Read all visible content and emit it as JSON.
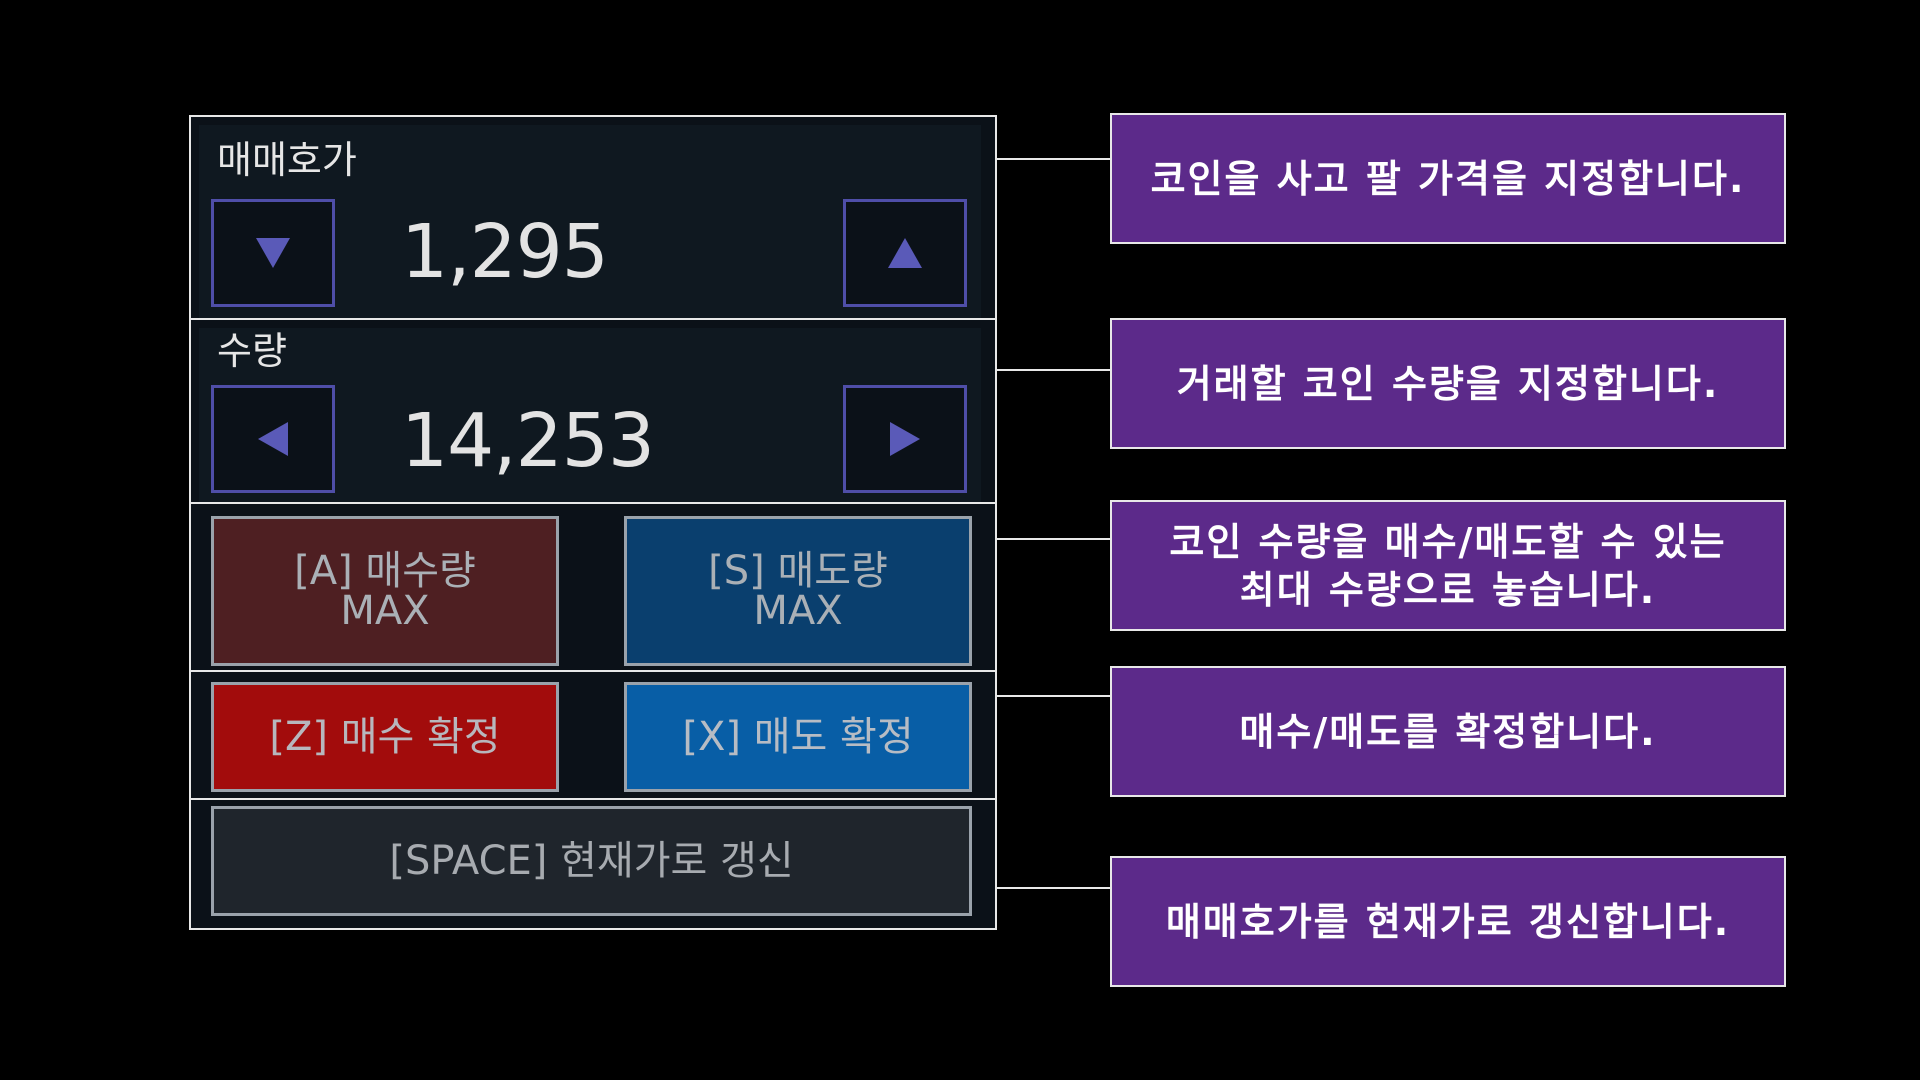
{
  "price": {
    "label": "매매호가",
    "value": "1,295"
  },
  "quantity": {
    "label": "수량",
    "value": "14,253"
  },
  "max_buttons": {
    "buy": {
      "line1": "[A] 매수량",
      "line2": "MAX"
    },
    "sell": {
      "line1": "[S] 매도량",
      "line2": "MAX"
    }
  },
  "confirm_buttons": {
    "buy": "[Z] 매수 확정",
    "sell": "[X] 매도 확정"
  },
  "refresh_button": "[SPACE] 현재가로 갱신",
  "callouts": [
    {
      "text": "코인을 사고 팔 가격을 지정합니다."
    },
    {
      "text": "거래할 코인 수량을 지정합니다."
    },
    {
      "line1": "코인 수량을 매수/매도할 수 있는",
      "line2": "최대 수량으로 놓습니다."
    },
    {
      "text": "매수/매도를 확정합니다."
    },
    {
      "text": "매매호가를 현재가로 갱신합니다."
    }
  ],
  "colors": {
    "buy_max": "#4e1f22",
    "sell_max": "#0a3f6e",
    "buy_confirm": "#a20c0c",
    "sell_confirm": "#085ea6",
    "refresh": "#1f252c",
    "arrow_border": "#4f4ea8",
    "arrow_fill": "#5a5ab8",
    "callout": "#5c2a8a"
  },
  "icons": {
    "price_down": "triangle-down-icon",
    "price_up": "triangle-up-icon",
    "qty_decrease": "triangle-left-icon",
    "qty_increase": "triangle-right-icon"
  }
}
